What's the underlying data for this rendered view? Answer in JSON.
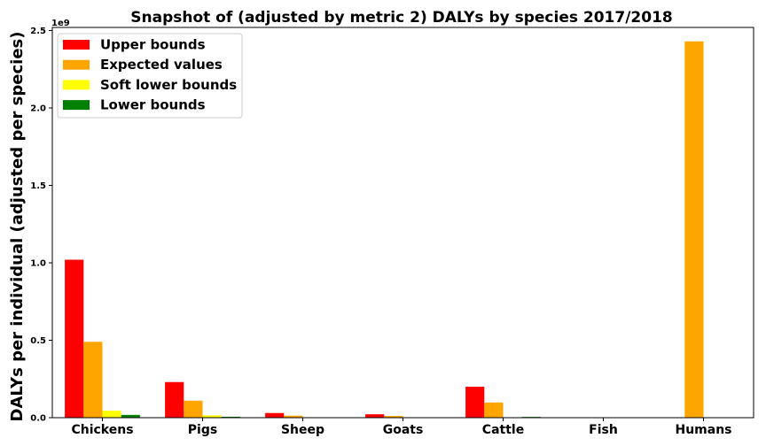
{
  "chart_data": {
    "type": "bar",
    "title": "Snapshot of (adjusted by metric 2) DALYs by species 2017/2018",
    "ylabel": "DALYs per individual (adjusted per species)",
    "xlabel": "",
    "offset_label": "1e9",
    "ylim": [
      0,
      2.52
    ],
    "yticks": [
      0.0,
      0.5,
      1.0,
      1.5,
      2.0,
      2.5
    ],
    "ytick_labels": [
      "0.0",
      "0.5",
      "1.0",
      "1.5",
      "2.0",
      "2.5"
    ],
    "categories": [
      "Chickens",
      "Pigs",
      "Sheep",
      "Goats",
      "Cattle",
      "Fish",
      "Humans"
    ],
    "legend_position": "top-left",
    "grid": false,
    "series": [
      {
        "name": "Upper bounds",
        "color": "#ff0000",
        "values": [
          1.02,
          0.23,
          0.03,
          0.022,
          0.2,
          0,
          0
        ]
      },
      {
        "name": "Expected values",
        "color": "#ffa500",
        "values": [
          0.49,
          0.11,
          0.013,
          0.011,
          0.098,
          0,
          2.43
        ]
      },
      {
        "name": "Soft lower bounds",
        "color": "#ffff00",
        "values": [
          0.045,
          0.015,
          0.002,
          0.002,
          0.002,
          0,
          0
        ]
      },
      {
        "name": "Lower bounds",
        "color": "#008000",
        "values": [
          0.018,
          0.006,
          0.001,
          0.001,
          0.005,
          0,
          0
        ]
      }
    ]
  }
}
